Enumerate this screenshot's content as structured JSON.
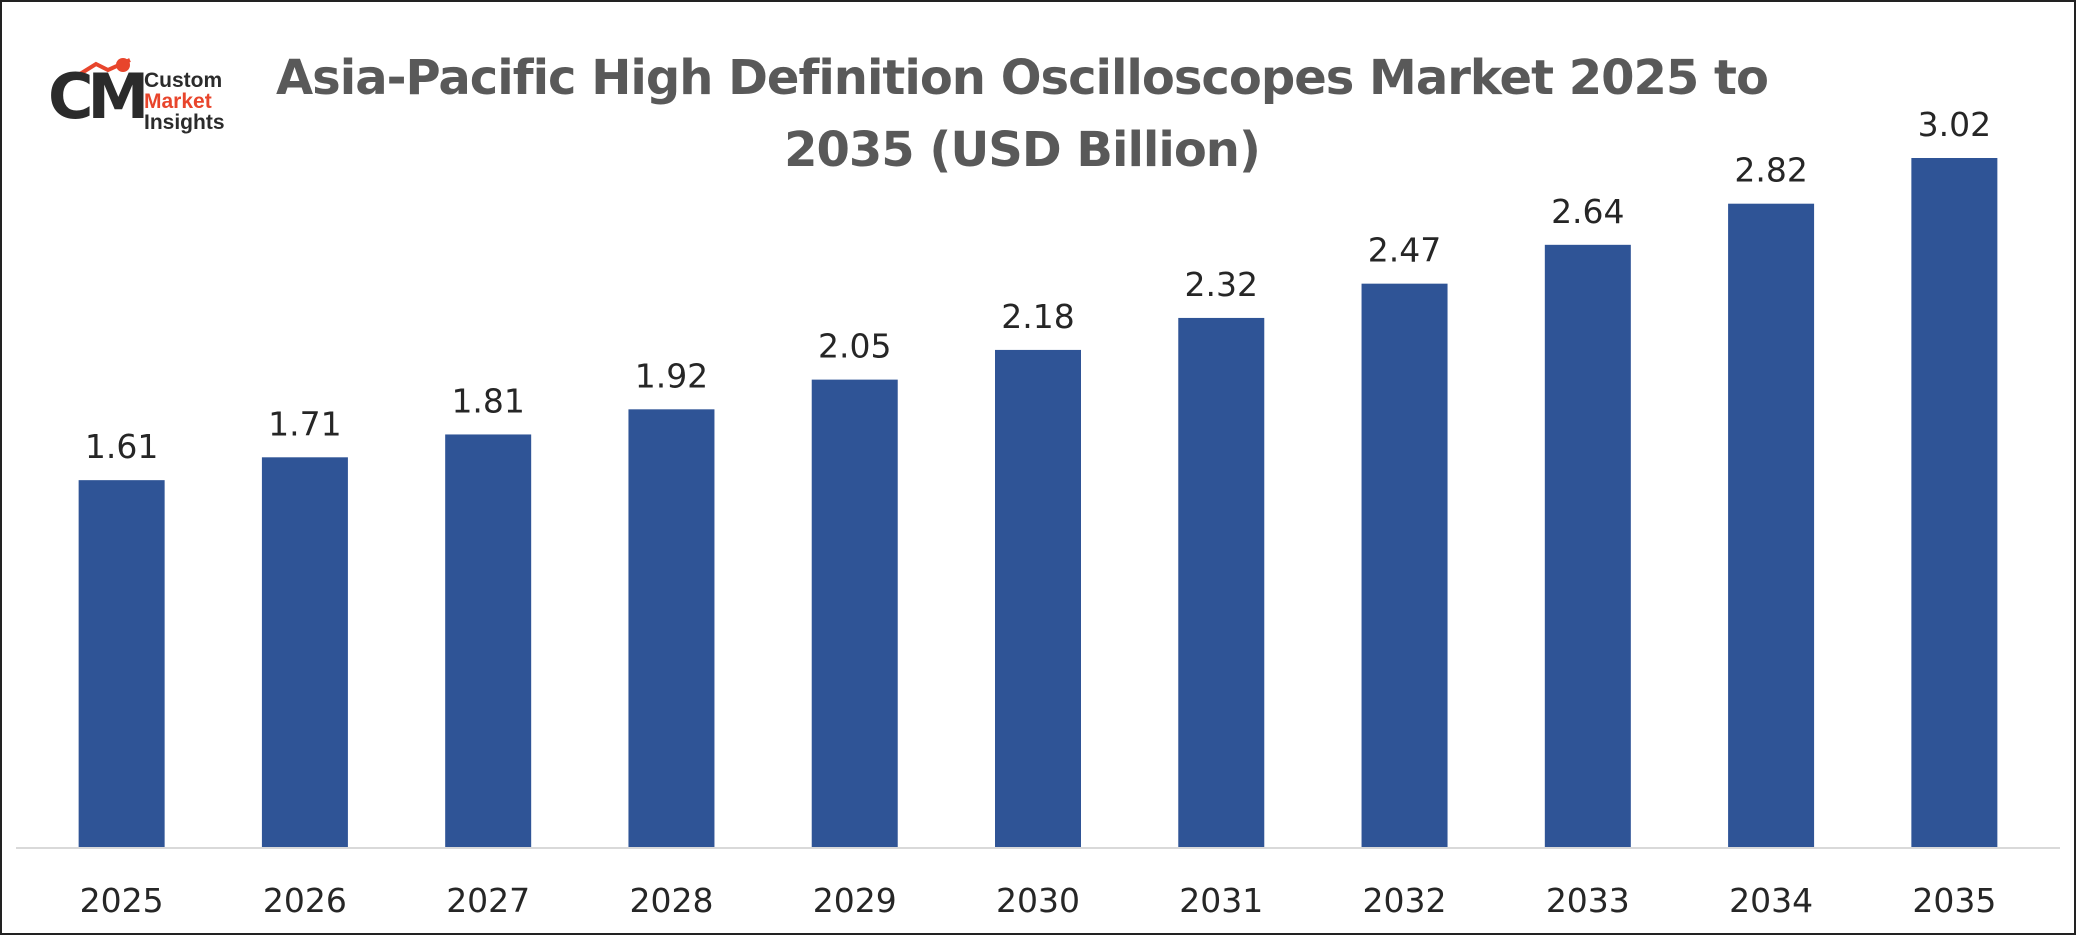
{
  "brand": {
    "logo_mark": "CM",
    "logo_line1": "Custom",
    "logo_line2": "Market",
    "logo_line3": "Insights",
    "accent_color": "#e8452c"
  },
  "chart_data": {
    "type": "bar",
    "title": "Asia-Pacific High Definition Oscilloscopes Market 2025 to 2035 (USD Billion)",
    "xlabel": "",
    "ylabel": "",
    "categories": [
      "2025",
      "2026",
      "2027",
      "2028",
      "2029",
      "2030",
      "2031",
      "2032",
      "2033",
      "2034",
      "2035"
    ],
    "values": [
      1.61,
      1.71,
      1.81,
      1.92,
      2.05,
      2.18,
      2.32,
      2.47,
      2.64,
      2.82,
      3.02
    ],
    "data_labels": [
      "1.61",
      "1.71",
      "1.81",
      "1.92",
      "2.05",
      "2.18",
      "2.32",
      "2.47",
      "2.64",
      "2.82",
      "3.02"
    ],
    "ylim": [
      0,
      3.02
    ],
    "grid": false,
    "legend": "none",
    "bar_color": "#2f5496"
  }
}
